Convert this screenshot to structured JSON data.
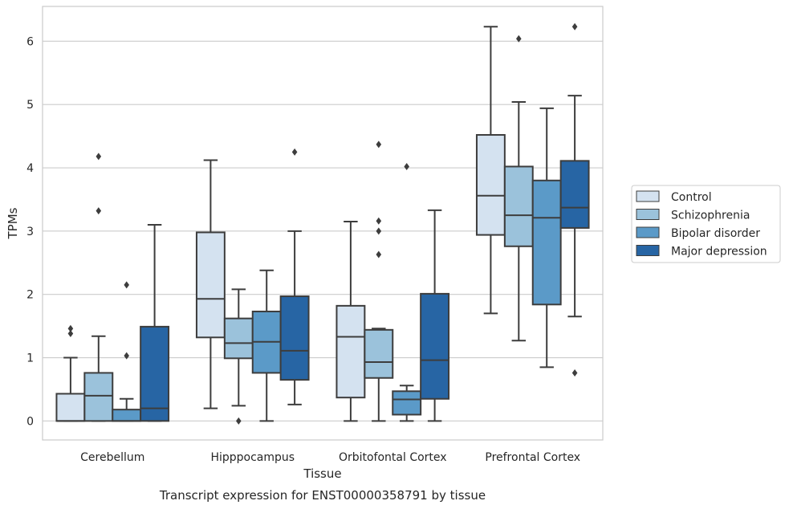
{
  "chart_data": {
    "type": "boxplot",
    "caption": "Transcript expression for ENST00000358791 by tissue",
    "xlabel": "Tissue",
    "ylabel": "TPMs",
    "ylim": [
      -0.3,
      6.55
    ],
    "yticks": [
      0,
      1,
      2,
      3,
      4,
      5,
      6
    ],
    "grid": "horizontal",
    "legend_position": "right",
    "categories": [
      "Cerebellum",
      "Hipppocampus",
      "Orbitofontal Cortex",
      "Prefrontal Cortex"
    ],
    "series": [
      {
        "name": "Control",
        "color": "#d4e2f0",
        "boxes": [
          {
            "whislo": 0.0,
            "q1": 0.0,
            "med": 0.0,
            "q3": 0.43,
            "whishi": 1.0,
            "fliers": [
              1.38,
              1.46
            ]
          },
          {
            "whislo": 0.2,
            "q1": 1.32,
            "med": 1.93,
            "q3": 2.98,
            "whishi": 4.12,
            "fliers": []
          },
          {
            "whislo": 0.0,
            "q1": 0.37,
            "med": 1.33,
            "q3": 1.82,
            "whishi": 3.15,
            "fliers": []
          },
          {
            "whislo": 1.7,
            "q1": 2.94,
            "med": 3.56,
            "q3": 4.52,
            "whishi": 6.23,
            "fliers": []
          }
        ]
      },
      {
        "name": "Schizophrenia",
        "color": "#9bc2db",
        "boxes": [
          {
            "whislo": 0.0,
            "q1": 0.0,
            "med": 0.4,
            "q3": 0.76,
            "whishi": 1.34,
            "fliers": [
              3.32,
              4.18
            ]
          },
          {
            "whislo": 0.24,
            "q1": 0.99,
            "med": 1.23,
            "q3": 1.62,
            "whishi": 2.08,
            "fliers": [
              0.0
            ]
          },
          {
            "whislo": 0.0,
            "q1": 0.68,
            "med": 0.93,
            "q3": 1.44,
            "whishi": 1.46,
            "fliers": [
              2.63,
              3.0,
              3.16,
              4.37
            ]
          },
          {
            "whislo": 1.27,
            "q1": 2.76,
            "med": 3.25,
            "q3": 4.02,
            "whishi": 5.04,
            "fliers": [
              6.04
            ]
          }
        ]
      },
      {
        "name": "Bipolar disorder",
        "color": "#5b9ac8",
        "boxes": [
          {
            "whislo": 0.0,
            "q1": 0.0,
            "med": 0.0,
            "q3": 0.18,
            "whishi": 0.35,
            "fliers": [
              1.03,
              2.15
            ]
          },
          {
            "whislo": 0.0,
            "q1": 0.76,
            "med": 1.25,
            "q3": 1.73,
            "whishi": 2.38,
            "fliers": []
          },
          {
            "whislo": 0.0,
            "q1": 0.1,
            "med": 0.34,
            "q3": 0.47,
            "whishi": 0.56,
            "fliers": [
              4.02
            ]
          },
          {
            "whislo": 0.85,
            "q1": 1.84,
            "med": 3.21,
            "q3": 3.8,
            "whishi": 4.94,
            "fliers": []
          }
        ]
      },
      {
        "name": "Major depression",
        "color": "#2765a4",
        "boxes": [
          {
            "whislo": 0.0,
            "q1": 0.0,
            "med": 0.2,
            "q3": 1.49,
            "whishi": 3.1,
            "fliers": []
          },
          {
            "whislo": 0.26,
            "q1": 0.65,
            "med": 1.11,
            "q3": 1.97,
            "whishi": 3.0,
            "fliers": [
              4.25
            ]
          },
          {
            "whislo": 0.0,
            "q1": 0.35,
            "med": 0.96,
            "q3": 2.01,
            "whishi": 3.33,
            "fliers": []
          },
          {
            "whislo": 1.65,
            "q1": 3.05,
            "med": 3.37,
            "q3": 4.11,
            "whishi": 5.14,
            "fliers": [
              0.76,
              6.23
            ]
          }
        ]
      }
    ]
  }
}
